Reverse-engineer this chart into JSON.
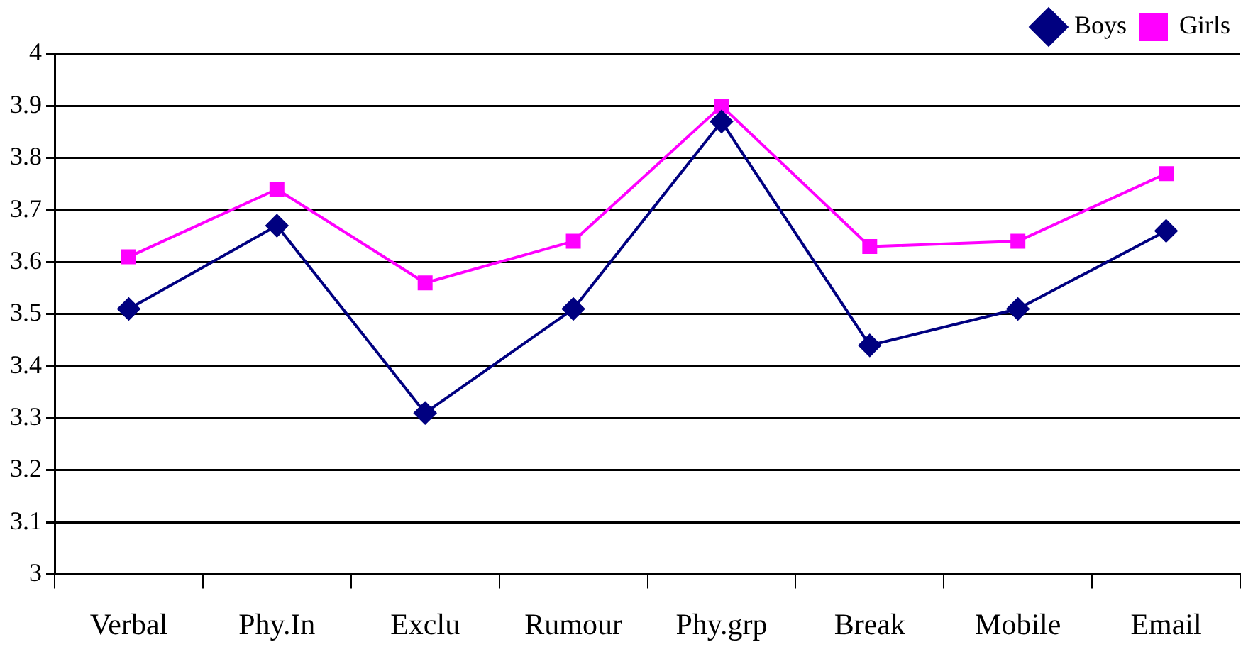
{
  "chart_data": {
    "type": "line",
    "categories": [
      "Verbal",
      "Phy.In",
      "Exclu",
      "Rumour",
      "Phy.grp",
      "Break",
      "Mobile",
      "Email"
    ],
    "series": [
      {
        "name": "Boys",
        "color": "#000080",
        "marker": "diamond",
        "values": [
          3.51,
          3.67,
          3.31,
          3.51,
          3.87,
          3.44,
          3.51,
          3.66
        ]
      },
      {
        "name": "Girls",
        "color": "#ff00ff",
        "marker": "square",
        "values": [
          3.61,
          3.74,
          3.56,
          3.64,
          3.9,
          3.63,
          3.64,
          3.77
        ]
      }
    ],
    "ylim": [
      3,
      4
    ],
    "yticks": [
      3,
      3.1,
      3.2,
      3.3,
      3.4,
      3.5,
      3.6,
      3.7,
      3.8,
      3.9,
      4
    ],
    "grid": "y",
    "legend": "top right",
    "line_style": "solid"
  }
}
